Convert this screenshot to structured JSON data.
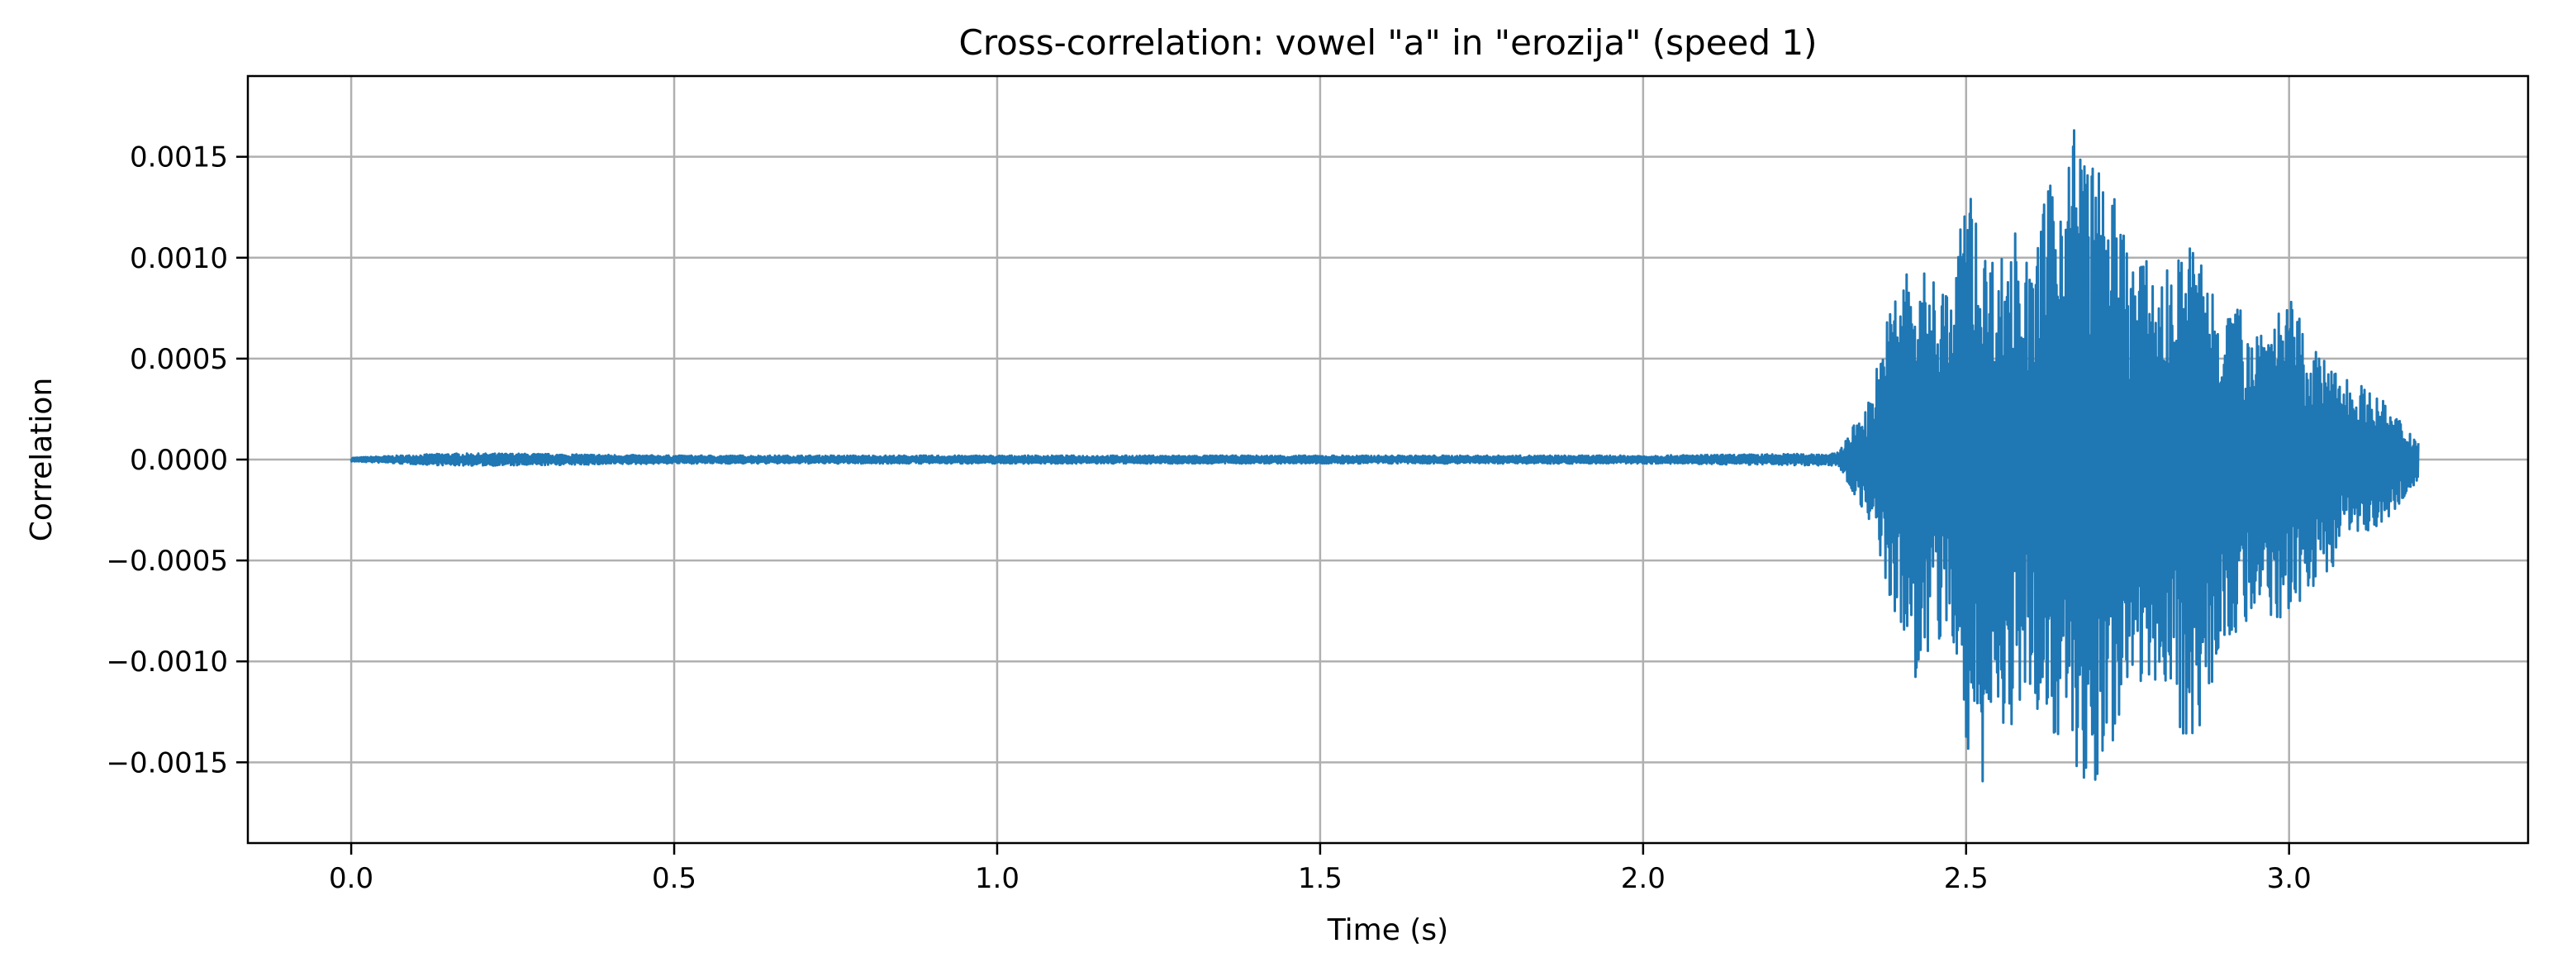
{
  "chart_data": {
    "type": "line",
    "title": "Cross-correlation: vowel \"a\" in \"erozija\" (speed 1)",
    "xlabel": "Time (s)",
    "ylabel": "Correlation",
    "xlim": [
      -0.16,
      3.37
    ],
    "ylim": [
      -0.0019,
      0.0019
    ],
    "x_ticks": [
      0.0,
      0.5,
      1.0,
      1.5,
      2.0,
      2.5,
      3.0
    ],
    "x_tick_labels": [
      "0.0",
      "0.5",
      "1.0",
      "1.5",
      "2.0",
      "2.5",
      "3.0"
    ],
    "y_ticks": [
      0.0015,
      0.001,
      0.0005,
      0.0,
      -0.0005,
      -0.001,
      -0.0015
    ],
    "y_tick_labels": [
      "0.0015",
      "0.0010",
      "0.0005",
      "0.0000",
      "−0.0005",
      "−0.0010",
      "−0.0015"
    ],
    "grid": true,
    "line_color": "#1f77b4",
    "series": [
      {
        "x": [
          0.0,
          0.15,
          0.25,
          0.5,
          1.0,
          1.5,
          2.0,
          2.3,
          2.35,
          2.37,
          2.4,
          2.42,
          2.45,
          2.48,
          2.5,
          2.52,
          2.55,
          2.58,
          2.6,
          2.62,
          2.65,
          2.67,
          2.7,
          2.72,
          2.75,
          2.8,
          2.85,
          2.9,
          2.95,
          3.0,
          3.05,
          3.1,
          3.15,
          3.2
        ],
        "y_upper": [
          1e-05,
          3e-05,
          3e-05,
          2e-05,
          2e-05,
          2e-05,
          2e-05,
          3e-05,
          0.0003,
          0.0006,
          0.001,
          0.0009,
          0.00095,
          0.0008,
          0.0015,
          0.0011,
          0.001,
          0.0012,
          0.0009,
          0.0013,
          0.0015,
          0.00173,
          0.00145,
          0.0014,
          0.0011,
          0.0009,
          0.0011,
          0.0008,
          0.0007,
          0.0008,
          0.0005,
          0.0004,
          0.00028,
          0.0001
        ],
        "y_lower": [
          -1e-05,
          -3e-05,
          -3e-05,
          -2e-05,
          -2e-05,
          -2e-05,
          -2e-05,
          -3e-05,
          -0.0003,
          -0.0006,
          -0.0009,
          -0.0011,
          -0.001,
          -0.0009,
          -0.0015,
          -0.00172,
          -0.0013,
          -0.0014,
          -0.0012,
          -0.0013,
          -0.0014,
          -0.0016,
          -0.00172,
          -0.0015,
          -0.0011,
          -0.0011,
          -0.00148,
          -0.0009,
          -0.0008,
          -0.0008,
          -0.0006,
          -0.0004,
          -0.0003,
          -0.0001
        ]
      }
    ]
  }
}
